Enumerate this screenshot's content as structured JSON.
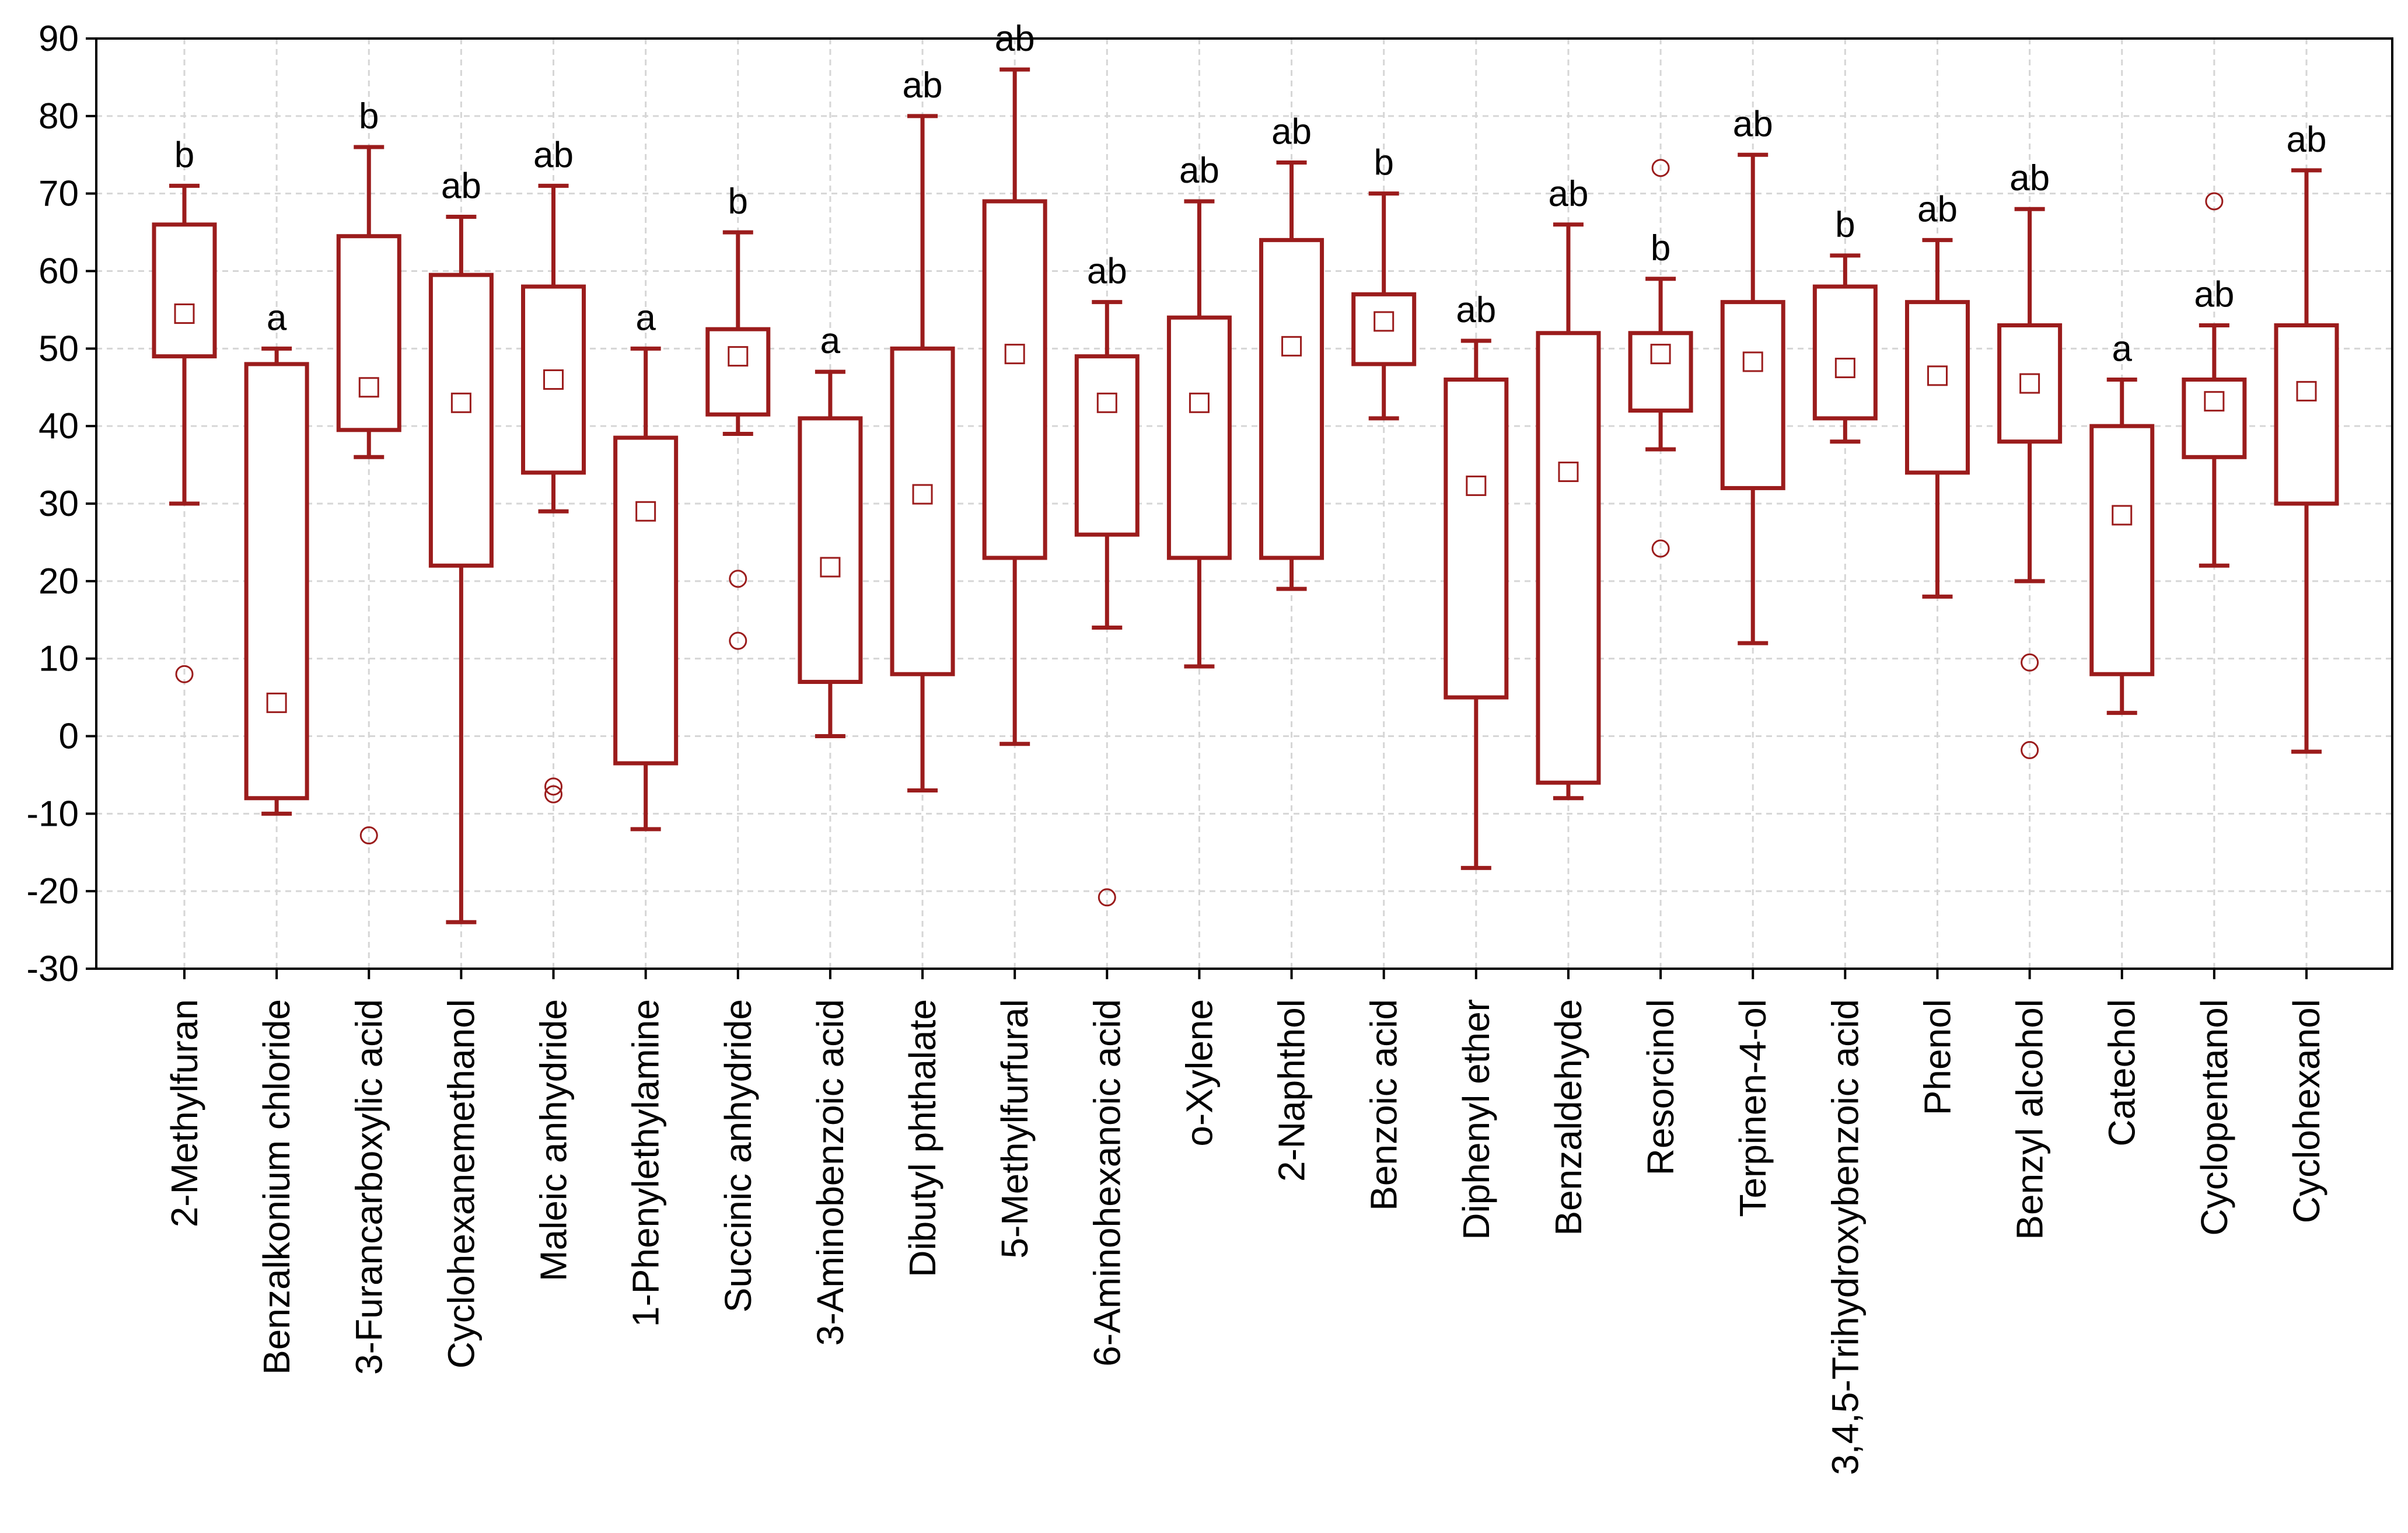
{
  "chart_data": {
    "type": "boxplot",
    "title": "",
    "xlabel": "",
    "ylabel": "",
    "ylim": [
      -30,
      90
    ],
    "yticks": [
      -30,
      -20,
      -10,
      0,
      10,
      20,
      30,
      40,
      50,
      60,
      70,
      80,
      90
    ],
    "grid": true,
    "colors": {
      "box": "#9b1c1c",
      "grid": "#d6d6d6",
      "axis": "#000000"
    },
    "series": [
      {
        "name": "2-Methylfuran",
        "mean": 54.5,
        "q1": 49,
        "q3": 66,
        "whisker_low": 30,
        "whisker_high": 71,
        "outliers": [
          8
        ],
        "group": "b"
      },
      {
        "name": "Benzalkonium chloride",
        "mean": 4.3,
        "q1": -8,
        "q3": 48,
        "whisker_low": -10,
        "whisker_high": 50,
        "outliers": [],
        "group": "a"
      },
      {
        "name": "3-Furancarboxylic acid",
        "mean": 45,
        "q1": 39.5,
        "q3": 64.5,
        "whisker_low": 36,
        "whisker_high": 76,
        "outliers": [
          -12.8
        ],
        "group": "b"
      },
      {
        "name": "Cyclohexanemethanol",
        "mean": 43,
        "q1": 22,
        "q3": 59.5,
        "whisker_low": -24,
        "whisker_high": 67,
        "outliers": [],
        "group": "ab"
      },
      {
        "name": "Maleic anhydride",
        "mean": 46,
        "q1": 34,
        "q3": 58,
        "whisker_low": 29,
        "whisker_high": 71,
        "outliers": [
          -6.5,
          -7.5
        ],
        "group": "ab"
      },
      {
        "name": "1-Phenylethylamine",
        "mean": 29,
        "q1": -3.5,
        "q3": 38.5,
        "whisker_low": -12,
        "whisker_high": 50,
        "outliers": [],
        "group": "a"
      },
      {
        "name": "Succinic anhydride",
        "mean": 49,
        "q1": 41.5,
        "q3": 52.5,
        "whisker_low": 39,
        "whisker_high": 65,
        "outliers": [
          20.3,
          12.3
        ],
        "group": "b"
      },
      {
        "name": "3-Aminobenzoic acid",
        "mean": 21.8,
        "q1": 7,
        "q3": 41,
        "whisker_low": 0,
        "whisker_high": 47,
        "outliers": [],
        "group": "a"
      },
      {
        "name": "Dibutyl phthalate",
        "mean": 31.2,
        "q1": 8,
        "q3": 50,
        "whisker_low": -7,
        "whisker_high": 80,
        "outliers": [],
        "group": "ab"
      },
      {
        "name": "5-Methylfurfural",
        "mean": 49.3,
        "q1": 23,
        "q3": 69,
        "whisker_low": -1,
        "whisker_high": 86,
        "outliers": [],
        "group": "ab"
      },
      {
        "name": "6-Aminohexanoic acid",
        "mean": 43,
        "q1": 26,
        "q3": 49,
        "whisker_low": 14,
        "whisker_high": 56,
        "outliers": [
          -20.8
        ],
        "group": "ab"
      },
      {
        "name": "o-Xylene",
        "mean": 43,
        "q1": 23,
        "q3": 54,
        "whisker_low": 9,
        "whisker_high": 69,
        "outliers": [],
        "group": "ab"
      },
      {
        "name": "2-Naphthol",
        "mean": 50.3,
        "q1": 23,
        "q3": 64,
        "whisker_low": 19,
        "whisker_high": 74,
        "outliers": [],
        "group": "ab"
      },
      {
        "name": "Benzoic acid",
        "mean": 53.5,
        "q1": 48,
        "q3": 57,
        "whisker_low": 41,
        "whisker_high": 70,
        "outliers": [],
        "group": "b"
      },
      {
        "name": "Diphenyl ether",
        "mean": 32.3,
        "q1": 5,
        "q3": 46,
        "whisker_low": -17,
        "whisker_high": 51,
        "outliers": [],
        "group": "ab"
      },
      {
        "name": "Benzaldehyde",
        "mean": 34.1,
        "q1": -6,
        "q3": 52,
        "whisker_low": -8,
        "whisker_high": 66,
        "outliers": [],
        "group": "ab"
      },
      {
        "name": "Resorcinol",
        "mean": 49.3,
        "q1": 42,
        "q3": 52,
        "whisker_low": 37,
        "whisker_high": 59,
        "outliers": [
          73.3,
          24.2
        ],
        "group": "b"
      },
      {
        "name": "Terpinen-4-ol",
        "mean": 48.3,
        "q1": 32,
        "q3": 56,
        "whisker_low": 12,
        "whisker_high": 75,
        "outliers": [],
        "group": "ab"
      },
      {
        "name": "3,4,5-Trihydroxybenzoic acid",
        "mean": 47.5,
        "q1": 41,
        "q3": 58,
        "whisker_low": 38,
        "whisker_high": 62,
        "outliers": [],
        "group": "b"
      },
      {
        "name": "Phenol",
        "mean": 46.5,
        "q1": 34,
        "q3": 56,
        "whisker_low": 18,
        "whisker_high": 64,
        "outliers": [],
        "group": "ab"
      },
      {
        "name": "Benzyl alcohol",
        "mean": 45.5,
        "q1": 38,
        "q3": 53,
        "whisker_low": 20,
        "whisker_high": 68,
        "outliers": [
          9.5,
          -1.8
        ],
        "group": "ab"
      },
      {
        "name": "Catechol",
        "mean": 28.5,
        "q1": 8,
        "q3": 40,
        "whisker_low": 3,
        "whisker_high": 46,
        "outliers": [],
        "group": "a"
      },
      {
        "name": "Cyclopentanol",
        "mean": 43.2,
        "q1": 36,
        "q3": 46,
        "whisker_low": 22,
        "whisker_high": 53,
        "outliers": [
          69
        ],
        "group": "ab"
      },
      {
        "name": "Cyclohexanol",
        "mean": 44.5,
        "q1": 30,
        "q3": 53,
        "whisker_low": -2,
        "whisker_high": 73,
        "outliers": [],
        "group": "ab"
      }
    ]
  }
}
